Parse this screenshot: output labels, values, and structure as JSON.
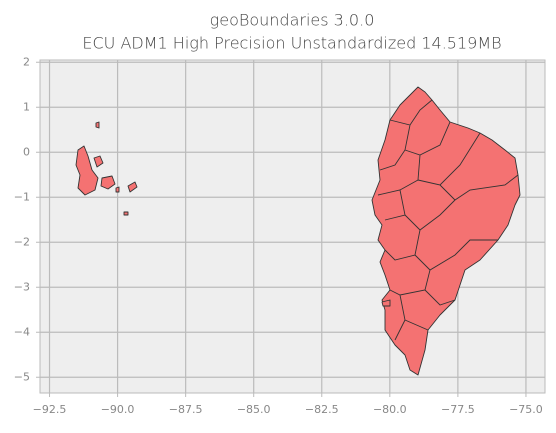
{
  "chart_data": {
    "type": "map",
    "title": "geoBoundaries 3.0.0",
    "subtitle": "ECU ADM1 High Precision Unstandardized 14.519MB",
    "xlim": [
      -92.85,
      -74.3
    ],
    "ylim": [
      -5.35,
      2.05
    ],
    "xticks": [
      {
        "value": -92.5,
        "label": "−92.5"
      },
      {
        "value": -90,
        "label": "−90.0"
      },
      {
        "value": -87.5,
        "label": "−87.5"
      },
      {
        "value": -85,
        "label": "−85.0"
      },
      {
        "value": -82.5,
        "label": "−82.5"
      },
      {
        "value": -80,
        "label": "−80.0"
      },
      {
        "value": -77.5,
        "label": "−77.5"
      },
      {
        "value": -75,
        "label": "−75.0"
      }
    ],
    "yticks": [
      {
        "value": -5,
        "label": "−5"
      },
      {
        "value": -4,
        "label": "−4"
      },
      {
        "value": -3,
        "label": "−3"
      },
      {
        "value": -2,
        "label": "−2"
      },
      {
        "value": -1,
        "label": "−1"
      },
      0,
      1,
      2
    ],
    "grid": true,
    "color": "#f47272"
  }
}
